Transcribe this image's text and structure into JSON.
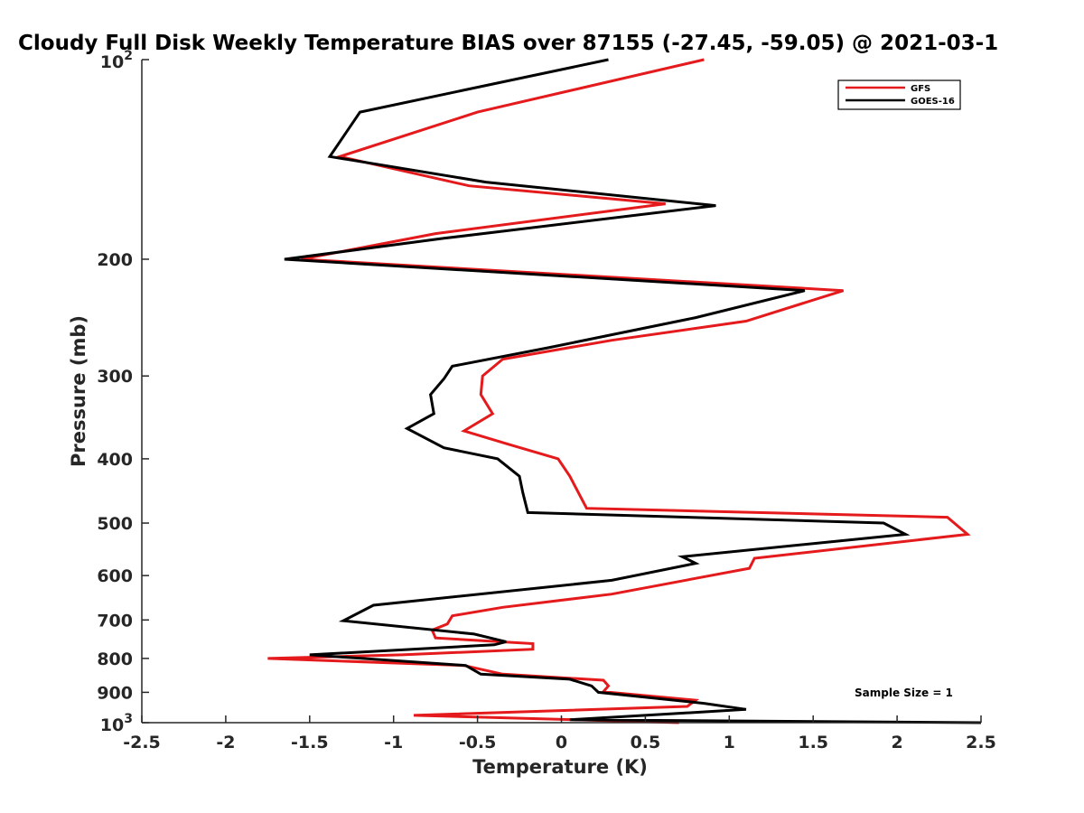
{
  "chart_data": {
    "type": "line",
    "title": "Cloudy Full Disk Weekly Temperature BIAS over 87155 (-27.45, -59.05) @ 2021-03-1",
    "xlabel": "Temperature (K)",
    "ylabel": "Pressure (mb)",
    "xlim": [
      -2.5,
      2.5
    ],
    "ylim": [
      100,
      1000
    ],
    "y_scale": "log",
    "y_reversed": true,
    "grid": false,
    "legend_position": "top-right",
    "x_ticks": [
      "-2.5",
      "-2",
      "-1.5",
      "-1",
      "-0.5",
      "0",
      "0.5",
      "1",
      "1.5",
      "2",
      "2.5"
    ],
    "y_ticks": [
      {
        "value": 100,
        "base": "10",
        "exp": "2"
      },
      {
        "value": 200,
        "label": "200"
      },
      {
        "value": 300,
        "label": "300"
      },
      {
        "value": 400,
        "label": "400"
      },
      {
        "value": 500,
        "label": "500"
      },
      {
        "value": 600,
        "label": "600"
      },
      {
        "value": 700,
        "label": "700"
      },
      {
        "value": 800,
        "label": "800"
      },
      {
        "value": 900,
        "label": "900"
      },
      {
        "value": 1000,
        "base": "10",
        "exp": "3"
      }
    ],
    "annotation": "Sample Size = 1",
    "series": [
      {
        "name": "GFS",
        "color": "#e41a1c",
        "points": [
          [
            0.85,
            100
          ],
          [
            -0.5,
            120
          ],
          [
            -1.32,
            140
          ],
          [
            -0.55,
            155
          ],
          [
            0.62,
            165
          ],
          [
            -0.75,
            183
          ],
          [
            -1.55,
            200
          ],
          [
            1.68,
            223
          ],
          [
            1.1,
            248
          ],
          [
            0.3,
            265
          ],
          [
            -0.35,
            283
          ],
          [
            -0.47,
            300
          ],
          [
            -0.48,
            320
          ],
          [
            -0.41,
            342
          ],
          [
            -0.58,
            363
          ],
          [
            -0.32,
            380
          ],
          [
            -0.02,
            400
          ],
          [
            0.05,
            425
          ],
          [
            0.15,
            475
          ],
          [
            2.3,
            490
          ],
          [
            2.42,
            520
          ],
          [
            1.15,
            565
          ],
          [
            1.12,
            585
          ],
          [
            0.3,
            640
          ],
          [
            -0.35,
            670
          ],
          [
            -0.65,
            690
          ],
          [
            -0.68,
            710
          ],
          [
            -0.77,
            725
          ],
          [
            -0.75,
            745
          ],
          [
            -0.17,
            760
          ],
          [
            -0.17,
            775
          ],
          [
            -0.95,
            790
          ],
          [
            -1.75,
            800
          ],
          [
            -0.58,
            820
          ],
          [
            -0.35,
            845
          ],
          [
            0.25,
            863
          ],
          [
            0.28,
            880
          ],
          [
            0.25,
            898
          ],
          [
            0.8,
            925
          ],
          [
            0.75,
            945
          ],
          [
            -0.88,
            975
          ],
          [
            0.7,
            1000
          ]
        ]
      },
      {
        "name": "GOES-16",
        "color": "#000000",
        "points": [
          [
            0.28,
            100
          ],
          [
            -1.2,
            120
          ],
          [
            -1.38,
            140
          ],
          [
            -0.45,
            153
          ],
          [
            0.92,
            166
          ],
          [
            -0.7,
            186
          ],
          [
            -1.65,
            200
          ],
          [
            1.45,
            223
          ],
          [
            0.8,
            245
          ],
          [
            -0.08,
            272
          ],
          [
            -0.65,
            290
          ],
          [
            -0.7,
            303
          ],
          [
            -0.78,
            320
          ],
          [
            -0.76,
            342
          ],
          [
            -0.92,
            360
          ],
          [
            -0.7,
            385
          ],
          [
            -0.38,
            400
          ],
          [
            -0.25,
            425
          ],
          [
            -0.23,
            450
          ],
          [
            -0.2,
            482
          ],
          [
            1.92,
            500
          ],
          [
            2.05,
            520
          ],
          [
            0.72,
            562
          ],
          [
            0.8,
            575
          ],
          [
            0.3,
            610
          ],
          [
            -1.12,
            665
          ],
          [
            -1.3,
            702
          ],
          [
            -0.52,
            735
          ],
          [
            -0.33,
            755
          ],
          [
            -0.4,
            763
          ],
          [
            -1.5,
            790
          ],
          [
            -0.57,
            820
          ],
          [
            -0.48,
            845
          ],
          [
            0.05,
            860
          ],
          [
            0.18,
            880
          ],
          [
            0.22,
            900
          ],
          [
            0.85,
            935
          ],
          [
            1.1,
            955
          ],
          [
            0.05,
            990
          ],
          [
            2.5,
            1000
          ]
        ]
      }
    ]
  }
}
